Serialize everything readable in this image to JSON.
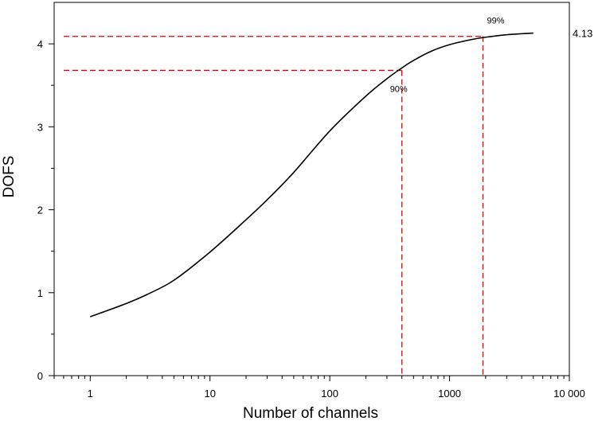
{
  "chart_data": {
    "type": "line",
    "xlabel": "Number of channels",
    "ylabel": "DOFS",
    "xscale": "log",
    "xlim": [
      0.5,
      10000
    ],
    "ylim": [
      0,
      4.5
    ],
    "x_tick_labels": [
      "1",
      "10",
      "100",
      "1000",
      "10 000"
    ],
    "y_tick_labels": [
      "0",
      "1",
      "2",
      "3",
      "4"
    ],
    "grid": false,
    "series": [
      {
        "x": [
          1,
          2,
          3,
          5,
          10,
          20,
          30,
          50,
          100,
          200,
          300,
          400,
          500,
          700,
          1000,
          1500,
          2000,
          3000,
          5000
        ],
        "y": [
          0.71,
          0.87,
          0.98,
          1.15,
          1.49,
          1.88,
          2.12,
          2.45,
          2.95,
          3.37,
          3.58,
          3.71,
          3.8,
          3.91,
          3.99,
          4.05,
          4.08,
          4.11,
          4.13
        ]
      }
    ],
    "reference_lines": [
      {
        "label": "90%",
        "x": 400,
        "y": 3.68
      },
      {
        "label": "99%",
        "x": 1900,
        "y": 4.09
      }
    ],
    "end_value_label": "4.13",
    "line_color": "#000000",
    "reference_color": "#e00000"
  }
}
